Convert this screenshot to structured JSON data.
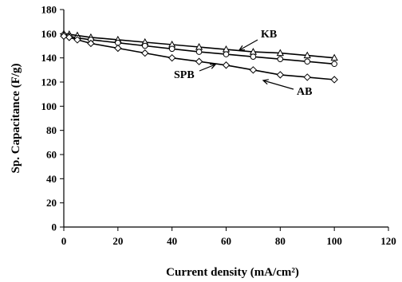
{
  "chart_data": {
    "type": "line",
    "xlabel": "Current density  (mA/cm²)",
    "ylabel": "Sp. Capacitance  (F/g)",
    "xlim": [
      0,
      120
    ],
    "ylim": [
      0,
      180
    ],
    "x_ticks": [
      0,
      20,
      40,
      60,
      80,
      100,
      120
    ],
    "y_ticks": [
      0,
      20,
      40,
      60,
      80,
      100,
      120,
      140,
      160,
      180
    ],
    "grid": false,
    "series": [
      {
        "name": "KB",
        "marker": "triangle",
        "x": [
          0,
          2,
          5,
          10,
          20,
          30,
          40,
          50,
          60,
          70,
          80,
          90,
          100
        ],
        "y": [
          160,
          159.5,
          158.5,
          157,
          155,
          153,
          151,
          149,
          147,
          145,
          144,
          142,
          140
        ]
      },
      {
        "name": "SPB",
        "marker": "circle",
        "x": [
          0,
          2,
          5,
          10,
          20,
          30,
          40,
          50,
          60,
          70,
          80,
          90,
          100
        ],
        "y": [
          159,
          158,
          156.5,
          155,
          152.5,
          150,
          147.5,
          145,
          143,
          141,
          139,
          137,
          135
        ]
      },
      {
        "name": "AB",
        "marker": "diamond",
        "x": [
          0,
          2,
          5,
          10,
          20,
          30,
          40,
          50,
          60,
          70,
          80,
          90,
          100
        ],
        "y": [
          158,
          157,
          155,
          152,
          148,
          144,
          140,
          137,
          134,
          130,
          126,
          124,
          122
        ]
      }
    ],
    "annotations": [
      {
        "text": "KB",
        "series": "KB"
      },
      {
        "text": "SPB",
        "series": "SPB"
      },
      {
        "text": "AB",
        "series": "AB"
      }
    ]
  }
}
